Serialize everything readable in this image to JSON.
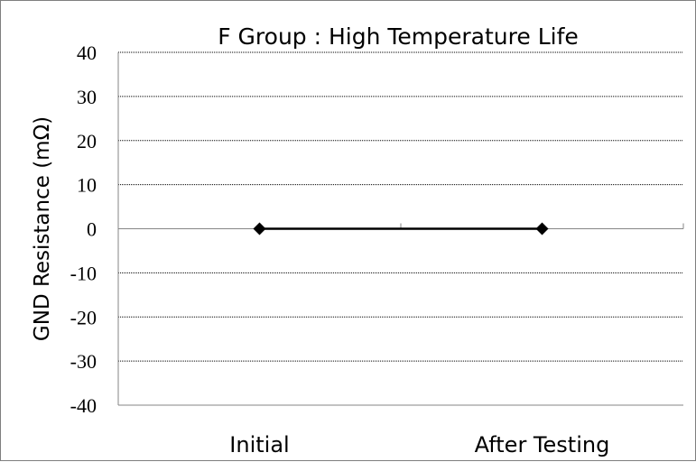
{
  "chart_data": {
    "type": "line",
    "title": "F Group : High Temperature Life",
    "xlabel": "",
    "ylabel": "GND Resistance (mΩ)",
    "categories": [
      "Initial",
      "After Testing"
    ],
    "series": [
      {
        "values": [
          0,
          0
        ]
      }
    ],
    "ylim": [
      -40,
      40
    ],
    "yticks": [
      40,
      30,
      20,
      10,
      0,
      -10,
      -20,
      -30,
      -40
    ],
    "grid": "horizontal",
    "legend": "none",
    "marker": "diamond",
    "colors": {
      "line": "#000000",
      "grid": "#000000",
      "axis": "#868686"
    }
  }
}
